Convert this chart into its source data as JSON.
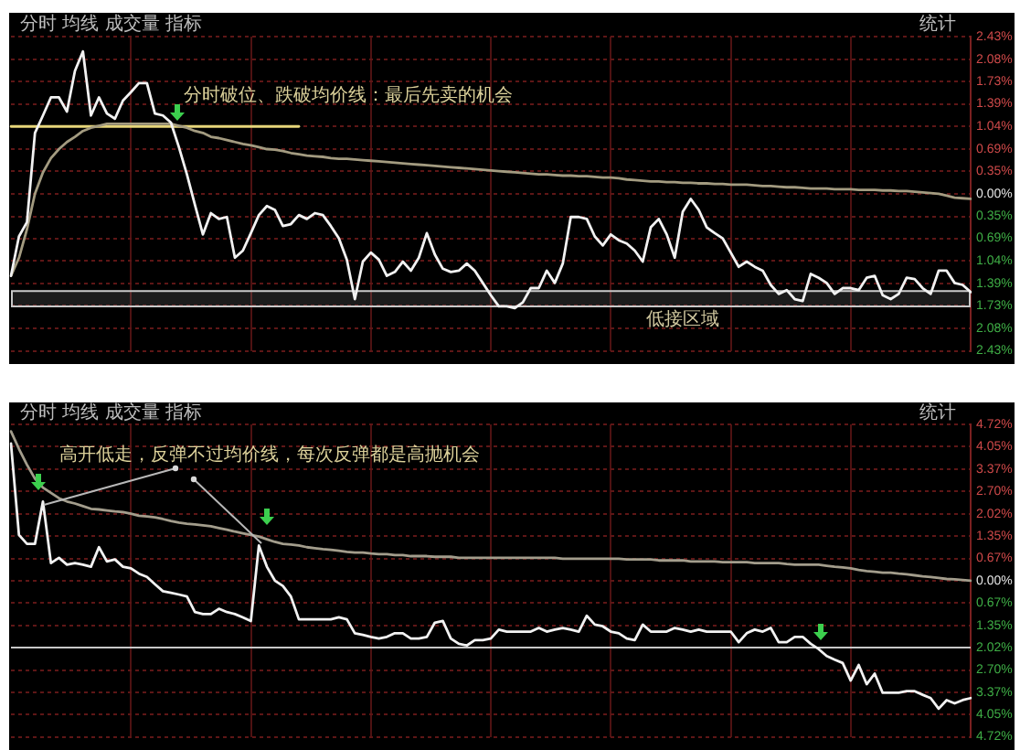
{
  "chart_data": [
    {
      "type": "line",
      "categories": [
        null,
        null,
        null,
        null,
        null,
        null,
        null,
        null,
        null,
        null,
        null,
        null,
        null,
        null,
        null,
        null,
        null,
        null,
        null,
        null,
        null,
        null,
        null,
        null,
        null,
        null,
        null,
        null,
        null,
        null,
        null,
        null,
        null,
        null,
        null,
        null,
        null,
        null,
        null,
        null,
        null,
        null,
        null,
        null,
        null,
        null,
        null,
        null,
        null,
        null,
        null,
        null,
        null,
        null,
        null,
        null,
        null,
        null,
        null,
        null,
        null,
        null,
        null,
        null,
        null,
        null,
        null,
        null,
        null,
        null,
        null,
        null,
        null,
        null,
        null,
        null,
        null,
        null,
        null,
        null,
        null,
        null,
        null,
        null,
        null,
        null,
        null,
        null,
        null,
        null,
        null,
        null,
        null,
        null,
        null,
        null,
        null,
        null,
        null,
        null,
        null,
        null,
        null,
        null,
        null,
        null,
        null,
        null,
        null,
        null,
        null,
        null,
        null,
        null,
        null,
        null,
        null,
        null,
        null,
        null,
        null
      ],
      "series": [
        {
          "color": "#f2f2f2",
          "values": [
            -1.27,
            -0.66,
            -0.44,
            0.94,
            1.21,
            1.49,
            1.49,
            1.27,
            1.9,
            2.2,
            1.21,
            1.49,
            1.24,
            1.16,
            1.44,
            1.57,
            1.71,
            1.71,
            1.24,
            1.21,
            1.1,
            0.72,
            0.3,
            -0.17,
            -0.63,
            -0.3,
            -0.39,
            -0.36,
            -0.99,
            -0.88,
            -0.61,
            -0.33,
            -0.19,
            -0.25,
            -0.5,
            -0.47,
            -0.33,
            -0.39,
            -0.3,
            -0.33,
            -0.5,
            -0.69,
            -1.02,
            -1.63,
            -1.05,
            -0.91,
            -1.02,
            -1.27,
            -1.21,
            -1.05,
            -1.19,
            -0.99,
            -0.61,
            -0.94,
            -1.16,
            -1.21,
            -1.19,
            -1.08,
            -1.19,
            -1.38,
            -1.57,
            -1.74,
            -1.74,
            -1.77,
            -1.68,
            -1.46,
            -1.46,
            -1.19,
            -1.38,
            -1.08,
            -0.36,
            -0.36,
            -0.39,
            -0.66,
            -0.8,
            -0.63,
            -0.72,
            -0.77,
            -0.88,
            -1.05,
            -0.52,
            -0.39,
            -0.63,
            -0.99,
            -0.28,
            -0.08,
            -0.25,
            -0.52,
            -0.61,
            -0.69,
            -0.91,
            -1.13,
            -1.05,
            -1.13,
            -1.19,
            -1.41,
            -1.55,
            -1.49,
            -1.63,
            -1.66,
            -1.24,
            -1.3,
            -1.38,
            -1.55,
            -1.46,
            -1.46,
            -1.49,
            -1.3,
            -1.27,
            -1.57,
            -1.63,
            -1.55,
            -1.3,
            -1.32,
            -1.46,
            -1.55,
            -1.19,
            -1.19,
            -1.38,
            -1.41,
            -1.52
          ]
        },
        {
          "color": "#a39b80",
          "values": [
            -1.27,
            -0.99,
            -0.55,
            0.0,
            0.33,
            0.55,
            0.69,
            0.8,
            0.88,
            0.97,
            1.02,
            1.05,
            1.08,
            1.08,
            1.08,
            1.08,
            1.08,
            1.08,
            1.08,
            1.08,
            1.08,
            1.05,
            1.02,
            0.97,
            0.94,
            0.88,
            0.86,
            0.83,
            0.8,
            0.77,
            0.75,
            0.72,
            0.69,
            0.68,
            0.66,
            0.63,
            0.61,
            0.59,
            0.58,
            0.57,
            0.55,
            0.54,
            0.54,
            0.53,
            0.52,
            0.51,
            0.5,
            0.49,
            0.48,
            0.47,
            0.46,
            0.45,
            0.44,
            0.43,
            0.42,
            0.41,
            0.4,
            0.39,
            0.38,
            0.37,
            0.36,
            0.35,
            0.34,
            0.33,
            0.32,
            0.31,
            0.3,
            0.3,
            0.29,
            0.28,
            0.28,
            0.27,
            0.27,
            0.26,
            0.25,
            0.25,
            0.24,
            0.22,
            0.21,
            0.2,
            0.19,
            0.19,
            0.18,
            0.18,
            0.17,
            0.17,
            0.16,
            0.16,
            0.15,
            0.15,
            0.14,
            0.14,
            0.14,
            0.13,
            0.12,
            0.12,
            0.11,
            0.1,
            0.1,
            0.09,
            0.08,
            0.08,
            0.08,
            0.07,
            0.07,
            0.07,
            0.06,
            0.06,
            0.06,
            0.05,
            0.05,
            0.04,
            0.04,
            0.03,
            0.02,
            0.01,
            0.0,
            -0.03,
            -0.06,
            -0.07,
            -0.08
          ]
        },
        {
          "color": "#e6d57a",
          "values": [
            1.04,
            1.04,
            1.04,
            1.04,
            1.04,
            1.04,
            1.04,
            1.04,
            1.04,
            1.04,
            1.04,
            1.04,
            1.04,
            1.04,
            1.04,
            1.04,
            1.04,
            1.04,
            1.04,
            1.04,
            1.04,
            1.04,
            1.04,
            1.04,
            1.04,
            1.04,
            1.04,
            1.04,
            1.04,
            1.04,
            1.04,
            1.04,
            1.04,
            1.04,
            1.04,
            1.04,
            1.04,
            null,
            null,
            null,
            null,
            null,
            null,
            null,
            null,
            null,
            null,
            null,
            null,
            null,
            null,
            null,
            null,
            null,
            null,
            null,
            null,
            null,
            null,
            null,
            null,
            null,
            null,
            null,
            null,
            null,
            null,
            null,
            null,
            null,
            null,
            null,
            null,
            null,
            null,
            null,
            null,
            null,
            null,
            null,
            null,
            null,
            null,
            null,
            null,
            null,
            null,
            null,
            null,
            null,
            null,
            null,
            null,
            null,
            null,
            null,
            null,
            null,
            null,
            null,
            null,
            null,
            null,
            null,
            null,
            null,
            null,
            null,
            null,
            null,
            null,
            null,
            null,
            null,
            null,
            null,
            null,
            null,
            null,
            null,
            null
          ]
        }
      ],
      "ylim": [
        -2.43,
        2.43
      ],
      "yticks": [
        {
          "value": 2.43,
          "label": "2.43%"
        },
        {
          "value": 2.08,
          "label": "2.08%"
        },
        {
          "value": 1.73,
          "label": "1.73%"
        },
        {
          "value": 1.39,
          "label": "1.39%"
        },
        {
          "value": 1.04,
          "label": "1.04%"
        },
        {
          "value": 0.69,
          "label": "0.69%"
        },
        {
          "value": 0.35,
          "label": "0.35%"
        },
        {
          "value": 0,
          "label": "0.00%"
        },
        {
          "value": -0.35,
          "label": "0.35%"
        },
        {
          "value": -0.69,
          "label": "0.69%"
        },
        {
          "value": -1.04,
          "label": "1.04%"
        },
        {
          "value": -1.39,
          "label": "1.39%"
        },
        {
          "value": -1.73,
          "label": "1.73%"
        },
        {
          "value": -2.08,
          "label": "2.08%"
        },
        {
          "value": -2.43,
          "label": "2.43%"
        }
      ],
      "bands": [
        {
          "axis": "y",
          "from": -1.73,
          "to": -1.49,
          "label": "低接区域",
          "color": "#c8c8c8"
        }
      ],
      "annotations": [
        "分时 均线 成交量 指标",
        "统计",
        "分时破位、跌破均价线：最后先卖的机会"
      ],
      "grid": true,
      "tick_labels": "y"
    },
    {
      "type": "line",
      "categories": [
        null,
        null,
        null,
        null,
        null,
        null,
        null,
        null,
        null,
        null,
        null,
        null,
        null,
        null,
        null,
        null,
        null,
        null,
        null,
        null,
        null,
        null,
        null,
        null,
        null,
        null,
        null,
        null,
        null,
        null,
        null,
        null,
        null,
        null,
        null,
        null,
        null,
        null,
        null,
        null,
        null,
        null,
        null,
        null,
        null,
        null,
        null,
        null,
        null,
        null,
        null,
        null,
        null,
        null,
        null,
        null,
        null,
        null,
        null,
        null,
        null,
        null,
        null,
        null,
        null,
        null,
        null,
        null,
        null,
        null,
        null,
        null,
        null,
        null,
        null,
        null,
        null,
        null,
        null,
        null,
        null,
        null,
        null,
        null,
        null,
        null,
        null,
        null,
        null,
        null,
        null,
        null,
        null,
        null,
        null,
        null,
        null,
        null,
        null,
        null,
        null,
        null,
        null,
        null,
        null,
        null,
        null,
        null,
        null,
        null,
        null,
        null,
        null,
        null,
        null,
        null,
        null,
        null,
        null,
        null,
        null
      ],
      "series": [
        {
          "color": "#f2f2f2",
          "values": [
            4.14,
            1.38,
            1.11,
            1.11,
            2.39,
            0.53,
            0.69,
            0.48,
            0.53,
            0.48,
            0.42,
            1.01,
            0.58,
            0.64,
            0.42,
            0.37,
            0.21,
            0.11,
            -0.11,
            -0.32,
            -0.37,
            -0.42,
            -0.48,
            -0.95,
            -1.01,
            -1.01,
            -0.85,
            -0.95,
            -1.01,
            -1.11,
            -1.22,
            1.06,
            0.42,
            0.0,
            -0.16,
            -0.48,
            -1.17,
            -1.17,
            -1.17,
            -1.17,
            -1.17,
            -1.11,
            -1.17,
            -1.59,
            -1.64,
            -1.7,
            -1.75,
            -1.7,
            -1.59,
            -1.59,
            -1.75,
            -1.75,
            -1.7,
            -1.27,
            -1.22,
            -1.75,
            -1.91,
            -1.96,
            -1.8,
            -1.8,
            -1.75,
            -1.48,
            -1.54,
            -1.54,
            -1.54,
            -1.54,
            -1.43,
            -1.54,
            -1.48,
            -1.43,
            -1.48,
            -1.54,
            -1.06,
            -1.33,
            -1.38,
            -1.54,
            -1.59,
            -1.75,
            -1.8,
            -1.33,
            -1.54,
            -1.54,
            -1.54,
            -1.43,
            -1.48,
            -1.54,
            -1.48,
            -1.54,
            -1.54,
            -1.54,
            -1.54,
            -1.86,
            -1.59,
            -1.48,
            -1.54,
            -1.43,
            -1.86,
            -1.86,
            -1.7,
            -1.7,
            -1.91,
            -2.07,
            -2.28,
            -2.39,
            -2.49,
            -3.02,
            -2.55,
            -3.13,
            -2.81,
            -3.39,
            -3.39,
            -3.39,
            -3.34,
            -3.34,
            -3.45,
            -3.55,
            -3.87,
            -3.61,
            -3.71,
            -3.61,
            -3.55
          ]
        },
        {
          "color": "#a39d8c",
          "values": [
            4.51,
            3.98,
            3.5,
            3.08,
            2.81,
            2.65,
            2.49,
            2.39,
            2.33,
            2.25,
            2.17,
            2.15,
            2.12,
            2.09,
            2.07,
            2.02,
            1.96,
            1.94,
            1.91,
            1.86,
            1.8,
            1.75,
            1.72,
            1.7,
            1.67,
            1.64,
            1.59,
            1.54,
            1.48,
            1.43,
            1.38,
            1.33,
            1.25,
            1.17,
            1.11,
            1.09,
            1.06,
            1.01,
            0.98,
            0.95,
            0.93,
            0.9,
            0.87,
            0.85,
            0.85,
            0.82,
            0.8,
            0.8,
            0.77,
            0.77,
            0.74,
            0.74,
            0.74,
            0.72,
            0.72,
            0.72,
            0.69,
            0.69,
            0.69,
            0.69,
            0.69,
            0.69,
            0.69,
            0.69,
            0.69,
            0.69,
            0.69,
            0.69,
            0.69,
            0.66,
            0.66,
            0.66,
            0.66,
            0.66,
            0.66,
            0.66,
            0.66,
            0.64,
            0.64,
            0.64,
            0.64,
            0.61,
            0.61,
            0.61,
            0.61,
            0.58,
            0.58,
            0.58,
            0.58,
            0.56,
            0.56,
            0.56,
            0.56,
            0.53,
            0.53,
            0.53,
            0.53,
            0.5,
            0.48,
            0.48,
            0.48,
            0.48,
            0.45,
            0.42,
            0.4,
            0.37,
            0.32,
            0.29,
            0.27,
            0.24,
            0.24,
            0.21,
            0.19,
            0.16,
            0.13,
            0.11,
            0.08,
            0.05,
            0.04,
            0.02,
            0.0
          ]
        }
      ],
      "ylim": [
        -4.72,
        4.72
      ],
      "yticks": [
        {
          "value": 4.72,
          "label": "4.72%"
        },
        {
          "value": 4.05,
          "label": "4.05%"
        },
        {
          "value": 3.37,
          "label": "3.37%"
        },
        {
          "value": 2.7,
          "label": "2.70%"
        },
        {
          "value": 2.02,
          "label": "2.02%"
        },
        {
          "value": 1.35,
          "label": "1.35%"
        },
        {
          "value": 0.67,
          "label": "0.67%"
        },
        {
          "value": 0,
          "label": "0.00%"
        },
        {
          "value": -0.67,
          "label": "0.67%"
        },
        {
          "value": -1.35,
          "label": "1.35%"
        },
        {
          "value": -2.02,
          "label": "2.02%"
        },
        {
          "value": -2.7,
          "label": "2.70%"
        },
        {
          "value": -3.37,
          "label": "3.37%"
        },
        {
          "value": -4.05,
          "label": "4.05%"
        },
        {
          "value": -4.72,
          "label": "4.72%"
        }
      ],
      "ref_lines": [
        {
          "axis": "y",
          "value": -2.02,
          "color": "#c8c8c8"
        }
      ],
      "annotations": [
        "分时 均线 成交量 指标",
        "统计",
        "高开低走，反弹不过均价线，每次反弹都是高抛机会"
      ],
      "grid": true,
      "tick_labels": "y"
    }
  ]
}
